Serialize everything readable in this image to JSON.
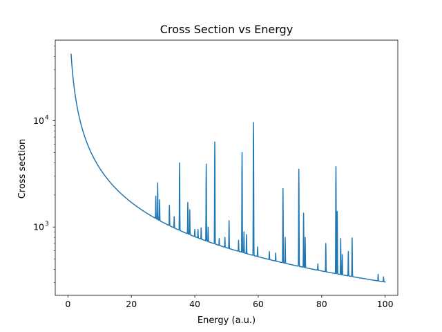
{
  "chart_data": {
    "type": "line",
    "title": "Cross Section vs Energy",
    "xlabel": "Energy (a.u.)",
    "ylabel": "Cross section",
    "xlim": [
      -4,
      104
    ],
    "ylim": [
      228,
      57000
    ],
    "yscale": "log",
    "grid": false,
    "x_ticks": [
      0,
      20,
      40,
      60,
      80,
      100
    ],
    "x_tick_labels": [
      "0",
      "20",
      "40",
      "60",
      "80",
      "100"
    ],
    "y_major_ticks": [
      1000,
      10000
    ],
    "y_tick_labels": [
      {
        "base": "10",
        "exp": "3"
      },
      {
        "base": "10",
        "exp": "4"
      }
    ],
    "background": {
      "amplitude": 42000,
      "decay_power": 1.07
    },
    "peaks": [
      {
        "x": 27.7,
        "y": 1950
      },
      {
        "x": 28.3,
        "y": 2600
      },
      {
        "x": 28.9,
        "y": 1800
      },
      {
        "x": 32.0,
        "y": 1600
      },
      {
        "x": 33.5,
        "y": 1250
      },
      {
        "x": 35.2,
        "y": 4000
      },
      {
        "x": 37.8,
        "y": 1700
      },
      {
        "x": 38.4,
        "y": 1450
      },
      {
        "x": 40.0,
        "y": 950
      },
      {
        "x": 41.0,
        "y": 950
      },
      {
        "x": 42.0,
        "y": 980
      },
      {
        "x": 43.6,
        "y": 3900
      },
      {
        "x": 44.2,
        "y": 1000
      },
      {
        "x": 46.3,
        "y": 6300
      },
      {
        "x": 47.7,
        "y": 780
      },
      {
        "x": 49.5,
        "y": 800
      },
      {
        "x": 50.8,
        "y": 1150
      },
      {
        "x": 53.8,
        "y": 750
      },
      {
        "x": 54.9,
        "y": 5000
      },
      {
        "x": 55.5,
        "y": 900
      },
      {
        "x": 56.3,
        "y": 850
      },
      {
        "x": 58.5,
        "y": 9600
      },
      {
        "x": 59.8,
        "y": 650
      },
      {
        "x": 63.5,
        "y": 590
      },
      {
        "x": 65.5,
        "y": 570
      },
      {
        "x": 67.8,
        "y": 2300
      },
      {
        "x": 68.5,
        "y": 800
      },
      {
        "x": 72.8,
        "y": 3500
      },
      {
        "x": 74.3,
        "y": 1350
      },
      {
        "x": 74.8,
        "y": 800
      },
      {
        "x": 78.8,
        "y": 450
      },
      {
        "x": 81.3,
        "y": 700
      },
      {
        "x": 84.5,
        "y": 3700
      },
      {
        "x": 84.9,
        "y": 1400
      },
      {
        "x": 86.0,
        "y": 780
      },
      {
        "x": 86.5,
        "y": 550
      },
      {
        "x": 88.4,
        "y": 590
      },
      {
        "x": 89.6,
        "y": 790
      },
      {
        "x": 97.8,
        "y": 360
      },
      {
        "x": 99.5,
        "y": 340
      }
    ],
    "series": [
      {
        "x_start": 1,
        "x_end": 100,
        "color": "#1f77b4"
      }
    ]
  }
}
